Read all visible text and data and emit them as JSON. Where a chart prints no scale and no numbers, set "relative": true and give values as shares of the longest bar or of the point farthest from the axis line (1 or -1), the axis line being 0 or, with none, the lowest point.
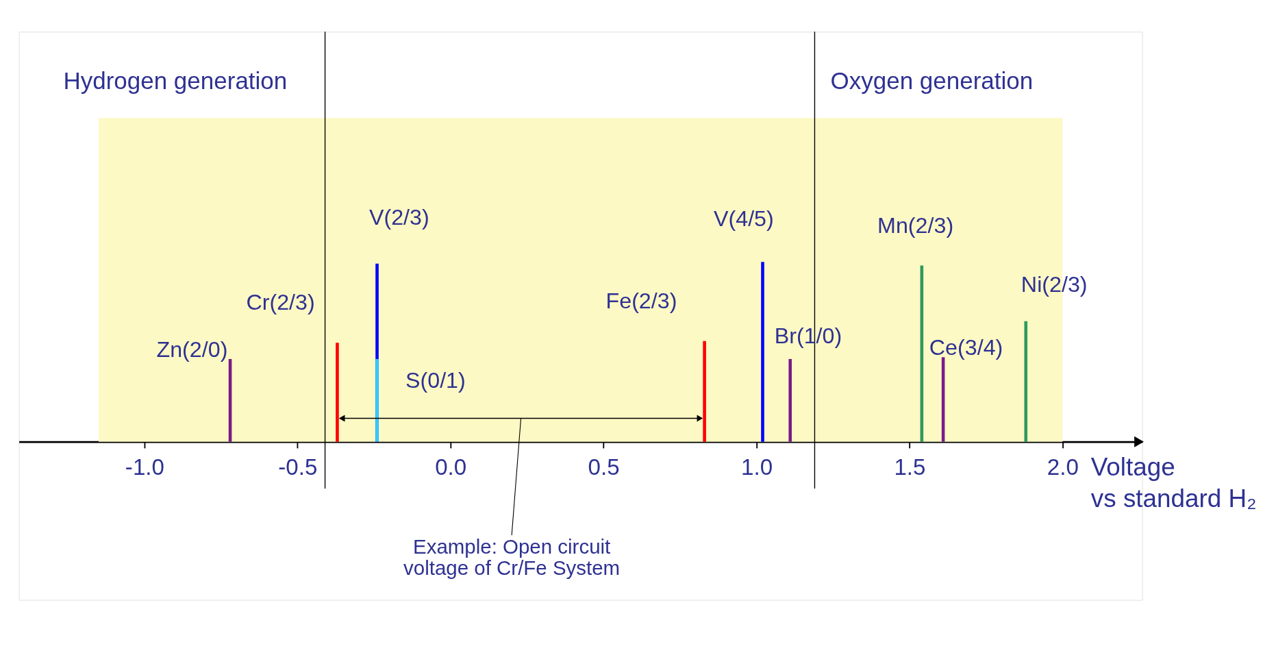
{
  "chart_data": {
    "type": "bar",
    "relative": true,
    "xlabel": "Voltage\nvs standard H₂",
    "xlim": [
      -1.4,
      2.25
    ],
    "xticks": [
      {
        "value": -1,
        "label": "-1.0"
      },
      -0.5,
      {
        "value": 0,
        "label": "0.0"
      },
      0.5,
      {
        "value": 1,
        "label": "1.0"
      },
      1.5,
      {
        "value": 2,
        "label": "2.0"
      }
    ],
    "series": [
      {
        "x": [
          -0.72,
          -0.37,
          -0.24,
          0.83,
          1.02,
          1.11,
          1.54,
          1.61,
          1.88
        ],
        "values": [
          0.46,
          0.55,
          0.99,
          0.56,
          1,
          0.46,
          0.98,
          0.47,
          0.67
        ],
        "colors": [
          "#7b1a8a",
          "#ff0000",
          "#0000ff",
          "#ff0000",
          "#0000ff",
          "#7b1a8a",
          "#2e9a5e",
          "#7b1a8a",
          "#2e9a5e"
        ]
      },
      {
        "x": [
          -0.24
        ],
        "values": [
          0.46
        ],
        "colors": [
          "#33ccff"
        ]
      }
    ],
    "annotations": [
      {
        "text": "Zn(2/0)",
        "x": -0.72,
        "y": 0.46
      },
      {
        "text": "Cr(2/3)",
        "x": -0.37,
        "y": 0.55
      },
      {
        "text": "V(2/3)",
        "x": -0.24,
        "y": 0.99
      },
      {
        "text": "S(0/1)",
        "x": -0.24,
        "y": 0.46
      },
      {
        "text": "Fe(2/3)",
        "x": 0.83,
        "y": 0.56
      },
      {
        "text": "V(4/5)",
        "x": 1.02,
        "y": 1
      },
      {
        "text": "Br(1/0)",
        "x": 1.11,
        "y": 0.46
      },
      {
        "text": "Mn(2/3)",
        "x": 1.54,
        "y": 0.98
      },
      {
        "text": "Ce(3/4)",
        "x": 1.61,
        "y": 0.47
      },
      {
        "text": "Ni(2/3)",
        "x": 1.88,
        "y": 0.67
      },
      "Example: Open circuit\nvoltage of Cr/Fe System"
    ],
    "ref_lines": [
      {
        "axis": "x",
        "value": -0.41,
        "label": "Hydrogen generation",
        "color": "#000000"
      },
      {
        "axis": "x",
        "value": 1.19,
        "label": "Oxygen generation",
        "color": "#000000"
      }
    ],
    "bands": [
      {
        "axis": "x",
        "from": -1.15,
        "to": 2.0,
        "color": "#fdf9c4"
      }
    ]
  }
}
